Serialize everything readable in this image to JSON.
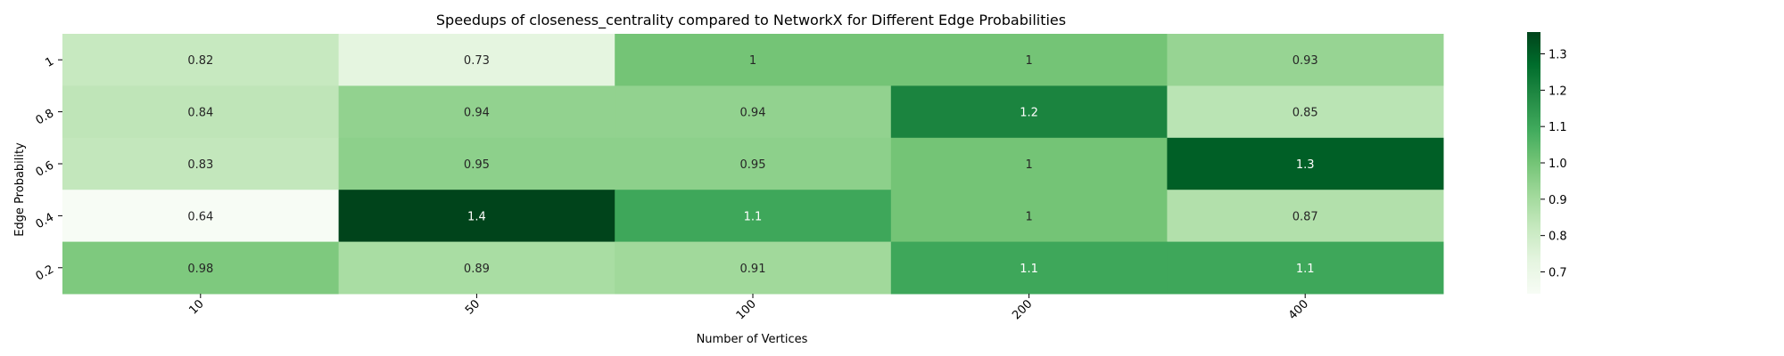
{
  "chart_data": {
    "type": "heatmap",
    "title": "Speedups of closeness_centrality compared to NetworkX for Different Edge Probabilities",
    "xlabel": "Number of Vertices",
    "ylabel": "Edge Probability",
    "x_categories": [
      "10",
      "50",
      "100",
      "200",
      "400"
    ],
    "y_categories": [
      "1",
      "0.8",
      "0.6",
      "0.4",
      "0.2"
    ],
    "values": [
      [
        0.82,
        0.73,
        1.0,
        1.0,
        0.93
      ],
      [
        0.84,
        0.94,
        0.94,
        1.2,
        0.85
      ],
      [
        0.83,
        0.95,
        0.95,
        1.0,
        1.3
      ],
      [
        0.64,
        1.4,
        1.1,
        1.0,
        0.87
      ],
      [
        0.98,
        0.89,
        0.91,
        1.1,
        1.1
      ]
    ],
    "value_labels": [
      [
        "0.82",
        "0.73",
        "1",
        "1",
        "0.93"
      ],
      [
        "0.84",
        "0.94",
        "0.94",
        "1.2",
        "0.85"
      ],
      [
        "0.83",
        "0.95",
        "0.95",
        "1",
        "1.3"
      ],
      [
        "0.64",
        "1.4",
        "1.1",
        "1",
        "0.87"
      ],
      [
        "0.98",
        "0.89",
        "0.91",
        "1.1",
        "1.1"
      ]
    ],
    "colorbar": {
      "min": 0.64,
      "max": 1.36,
      "ticks": [
        "0.7",
        "0.8",
        "0.9",
        "1.0",
        "1.1",
        "1.2",
        "1.3"
      ]
    },
    "colormap": "Greens",
    "grid": false
  }
}
